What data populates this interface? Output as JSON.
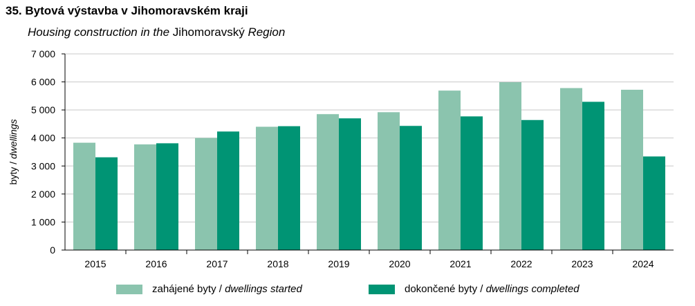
{
  "title": "35. Bytová výstavba v Jihomoravském kraji",
  "subtitle": {
    "part1": "Housing construction in the",
    "part2": " Jihomoravský ",
    "part3": "Region"
  },
  "colors": {
    "started": "#8bc4ae",
    "completed": "#009474",
    "grid": "#c8c8c8",
    "axis": "#000000"
  },
  "legend": [
    {
      "normal": "zahájené  byty / ",
      "italic": "dwellings started"
    },
    {
      "normal": "dokončené  byty / ",
      "italic": "dwellings completed"
    }
  ],
  "chart_data": {
    "type": "bar",
    "categories": [
      "2015",
      "2016",
      "2017",
      "2018",
      "2019",
      "2020",
      "2021",
      "2022",
      "2023",
      "2024"
    ],
    "series": [
      {
        "name": "zahájené byty / dwellings started",
        "values": [
          3830,
          3770,
          4000,
          4400,
          4850,
          4920,
          5690,
          5990,
          5780,
          5720
        ]
      },
      {
        "name": "dokončené byty / dwellings completed",
        "values": [
          3310,
          3810,
          4230,
          4420,
          4700,
          4430,
          4770,
          4640,
          5290,
          3340
        ]
      }
    ],
    "ylabel_normal": "byty / ",
    "ylabel_italic": "dwellings",
    "ylim": [
      0,
      7000
    ],
    "yticks": [
      0,
      1000,
      2000,
      3000,
      4000,
      5000,
      6000,
      7000
    ],
    "ytick_labels": [
      "0",
      "1 000",
      "2 000",
      "3 000",
      "4 000",
      "5 000",
      "6 000",
      "7 000"
    ],
    "grid": true,
    "legend_position": "bottom"
  }
}
